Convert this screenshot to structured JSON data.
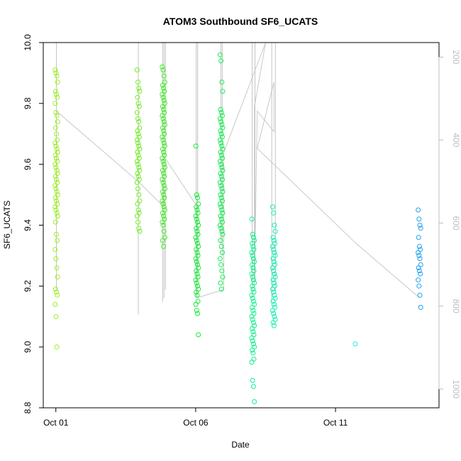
{
  "chart_data": {
    "type": "scatter",
    "title": "ATOM3 Southbound SF6_UCATS",
    "xlabel": "Date",
    "ylabel": "SF6_UCATS",
    "x_tick_labels": [
      {
        "day": 1,
        "label": "Oct 01"
      },
      {
        "day": 6,
        "label": "Oct 06"
      },
      {
        "day": 11,
        "label": "Oct 11"
      }
    ],
    "xlim_days": [
      0.55,
      14.7
    ],
    "ylim": [
      8.8,
      10.0
    ],
    "y_ticks": [
      8.8,
      9.0,
      9.2,
      9.4,
      9.6,
      9.8,
      10.0
    ],
    "right_axis": {
      "description": "pressure (reversed)",
      "ticks": [
        200,
        400,
        600,
        800,
        1000
      ],
      "lim": [
        165,
        1045
      ],
      "color": "#bdbdbd"
    },
    "clusters": [
      {
        "day": 1.02,
        "color": "#9cf020",
        "values": [
          9.91,
          9.9,
          9.89,
          9.87,
          9.84,
          9.83,
          9.82,
          9.8,
          9.77,
          9.76,
          9.74,
          9.72,
          9.7,
          9.68,
          9.67,
          9.66,
          9.65,
          9.64,
          9.63,
          9.62,
          9.61,
          9.6,
          9.59,
          9.58,
          9.57,
          9.56,
          9.55,
          9.54,
          9.53,
          9.52,
          9.51,
          9.5,
          9.49,
          9.48,
          9.47,
          9.46,
          9.45,
          9.44,
          9.43,
          9.41,
          9.37,
          9.35,
          9.32,
          9.29,
          9.26,
          9.23,
          9.19,
          9.18,
          9.17,
          9.14,
          9.1,
          9.0
        ]
      },
      {
        "day": 3.95,
        "color": "#6ef020",
        "values": [
          9.91,
          9.87,
          9.85,
          9.84,
          9.82,
          9.8,
          9.79,
          9.77,
          9.75,
          9.74,
          9.72,
          9.71,
          9.7,
          9.69,
          9.68,
          9.67,
          9.66,
          9.65,
          9.64,
          9.63,
          9.62,
          9.61,
          9.6,
          9.59,
          9.58,
          9.57,
          9.56,
          9.55,
          9.54,
          9.52,
          9.5,
          9.48,
          9.47,
          9.45,
          9.44,
          9.43,
          9.41,
          9.39,
          9.38
        ]
      },
      {
        "day": 4.85,
        "color": "#3cf020",
        "values": [
          9.92,
          9.91,
          9.89,
          9.87,
          9.86,
          9.85,
          9.84,
          9.83,
          9.82,
          9.81,
          9.8,
          9.79,
          9.78,
          9.77,
          9.76,
          9.75,
          9.74,
          9.73,
          9.72,
          9.71,
          9.7,
          9.69,
          9.68,
          9.67,
          9.66,
          9.65,
          9.64,
          9.63,
          9.62,
          9.61,
          9.6,
          9.59,
          9.58,
          9.57,
          9.56,
          9.55,
          9.54,
          9.53,
          9.52,
          9.51,
          9.5,
          9.49,
          9.48,
          9.47,
          9.46,
          9.45,
          9.44,
          9.43,
          9.42,
          9.41,
          9.4,
          9.38,
          9.36,
          9.35,
          9.33
        ]
      },
      {
        "day": 6.05,
        "color": "#10f030",
        "values": [
          9.66,
          9.5,
          9.49,
          9.47,
          9.46,
          9.45,
          9.44,
          9.43,
          9.42,
          9.41,
          9.4,
          9.39,
          9.38,
          9.37,
          9.36,
          9.35,
          9.34,
          9.33,
          9.32,
          9.31,
          9.3,
          9.29,
          9.28,
          9.27,
          9.26,
          9.25,
          9.24,
          9.23,
          9.22,
          9.21,
          9.2,
          9.19,
          9.18,
          9.17,
          9.15,
          9.14,
          9.12,
          9.11,
          9.04
        ]
      },
      {
        "day": 6.92,
        "color": "#10f050",
        "values": [
          9.96,
          9.94,
          9.87,
          9.84,
          9.78,
          9.77,
          9.76,
          9.75,
          9.74,
          9.73,
          9.72,
          9.71,
          9.7,
          9.69,
          9.68,
          9.67,
          9.66,
          9.65,
          9.64,
          9.63,
          9.62,
          9.61,
          9.6,
          9.59,
          9.58,
          9.57,
          9.56,
          9.55,
          9.54,
          9.53,
          9.52,
          9.51,
          9.5,
          9.49,
          9.48,
          9.47,
          9.46,
          9.45,
          9.44,
          9.43,
          9.42,
          9.41,
          9.4,
          9.39,
          9.38,
          9.37,
          9.35,
          9.33,
          9.31,
          9.29,
          9.27,
          9.25,
          9.23,
          9.21,
          9.19
        ]
      },
      {
        "day": 8.05,
        "color": "#10f090",
        "values": [
          9.42,
          9.37,
          9.36,
          9.35,
          9.34,
          9.33,
          9.32,
          9.31,
          9.3,
          9.29,
          9.28,
          9.27,
          9.26,
          9.25,
          9.24,
          9.23,
          9.22,
          9.21,
          9.2,
          9.19,
          9.18,
          9.17,
          9.16,
          9.15,
          9.14,
          9.13,
          9.12,
          9.11,
          9.1,
          9.09,
          9.08,
          9.07,
          9.06,
          9.05,
          9.04,
          9.03,
          9.02,
          9.01,
          9.0,
          8.99,
          8.98,
          8.96,
          8.95,
          8.89,
          8.87,
          8.82
        ]
      },
      {
        "day": 8.8,
        "color": "#10f0b0",
        "values": [
          9.46,
          9.44,
          9.4,
          9.38,
          9.36,
          9.35,
          9.34,
          9.33,
          9.32,
          9.31,
          9.3,
          9.29,
          9.28,
          9.27,
          9.26,
          9.25,
          9.24,
          9.23,
          9.22,
          9.21,
          9.2,
          9.19,
          9.18,
          9.17,
          9.16,
          9.15,
          9.14,
          9.13,
          9.12,
          9.11,
          9.1,
          9.09,
          9.08,
          9.07
        ]
      },
      {
        "day": 11.75,
        "color": "#20f0e0",
        "values": [
          9.01
        ]
      },
      {
        "day": 14.0,
        "color": "#20a0f0",
        "values": [
          9.45,
          9.42,
          9.4,
          9.39,
          9.36,
          9.33,
          9.32,
          9.31,
          9.3,
          9.29,
          9.27,
          9.26,
          9.25,
          9.24,
          9.22,
          9.2,
          9.17,
          9.13
        ]
      }
    ],
    "pressure_profiles": [
      {
        "day": 1.02,
        "p_top": 165,
        "p_bottom": 760
      },
      {
        "day": 3.95,
        "p_top": 165,
        "p_bottom": 820
      },
      {
        "day": 4.82,
        "p_top": 165,
        "p_bottom": 790
      },
      {
        "day": 4.87,
        "p_top": 165,
        "p_bottom": 780
      },
      {
        "day": 4.92,
        "p_top": 165,
        "p_bottom": 760
      },
      {
        "day": 6.02,
        "p_top": 165,
        "p_bottom": 780
      },
      {
        "day": 6.07,
        "p_top": 165,
        "p_bottom": 720
      },
      {
        "day": 6.9,
        "p_top": 165,
        "p_bottom": 650
      },
      {
        "day": 6.95,
        "p_top": 165,
        "p_bottom": 680
      },
      {
        "day": 8.02,
        "p_top": 165,
        "p_bottom": 780
      },
      {
        "day": 8.12,
        "p_top": 165,
        "p_bottom": 740
      },
      {
        "day": 8.72,
        "p_top": 165,
        "p_bottom": 790
      },
      {
        "day": 8.85,
        "p_top": 165,
        "p_bottom": 770
      }
    ],
    "pressure_track": [
      [
        1.02,
        330
      ],
      [
        3.95,
        500
      ],
      [
        4.85,
        560
      ],
      [
        4.87,
        440
      ],
      [
        6.05,
        560
      ],
      [
        6.05,
        780
      ],
      [
        7.0,
        760
      ],
      [
        7.0,
        430
      ],
      [
        8.5,
        165
      ],
      [
        8.1,
        320
      ],
      [
        8.1,
        760
      ],
      [
        8.2,
        330
      ],
      [
        8.8,
        380
      ],
      [
        8.8,
        260
      ],
      [
        8.2,
        420
      ],
      [
        11.75,
        650
      ],
      [
        14.0,
        780
      ]
    ]
  }
}
